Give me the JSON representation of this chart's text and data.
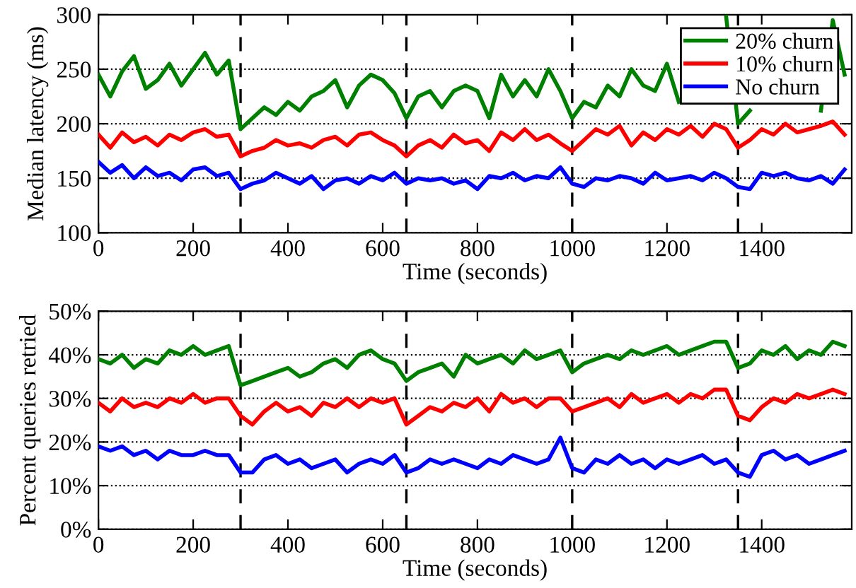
{
  "chart_data": [
    {
      "type": "line",
      "xlabel": "Time (seconds)",
      "ylabel": "Median latency (ms)",
      "xlim": [
        0,
        1590
      ],
      "xticks": [
        0,
        200,
        400,
        600,
        800,
        1000,
        1200,
        1400
      ],
      "ylim": [
        100,
        300
      ],
      "yticks": [
        100,
        150,
        200,
        250,
        300
      ],
      "grid": "y",
      "legend": "top right",
      "line_style": "solid",
      "x": [
        0,
        25,
        50,
        75,
        100,
        125,
        150,
        175,
        200,
        225,
        250,
        275,
        300,
        325,
        350,
        375,
        400,
        425,
        450,
        475,
        500,
        525,
        550,
        575,
        600,
        625,
        650,
        675,
        700,
        725,
        750,
        775,
        800,
        825,
        850,
        875,
        900,
        925,
        950,
        975,
        1000,
        1025,
        1050,
        1075,
        1100,
        1125,
        1150,
        1175,
        1200,
        1225,
        1250,
        1275,
        1300,
        1325,
        1350,
        1375,
        1400,
        1425,
        1450,
        1475,
        1500,
        1525,
        1550,
        1575
      ],
      "ref_lines": [
        {
          "axis": "x",
          "value": 300,
          "color": "#000000",
          "line_style": "dashed"
        },
        {
          "axis": "x",
          "value": 650,
          "color": "#000000",
          "line_style": "dashed"
        },
        {
          "axis": "x",
          "value": 1000,
          "color": "#000000",
          "line_style": "dashed"
        },
        {
          "axis": "x",
          "value": 1350,
          "color": "#000000",
          "line_style": "dashed"
        }
      ],
      "series": [
        {
          "name": "20% churn",
          "color": "#008000",
          "values": [
            245,
            225,
            248,
            262,
            232,
            240,
            255,
            235,
            250,
            265,
            245,
            258,
            195,
            205,
            215,
            208,
            220,
            212,
            225,
            230,
            240,
            215,
            235,
            245,
            240,
            228,
            205,
            225,
            230,
            215,
            230,
            235,
            230,
            205,
            245,
            225,
            240,
            225,
            250,
            230,
            205,
            220,
            215,
            235,
            225,
            250,
            235,
            230,
            255,
            220,
            null,
            null,
            null,
            298,
            200,
            212,
            null,
            null,
            null,
            null,
            null,
            212,
            295,
            245
          ]
        },
        {
          "name": "10% churn",
          "color": "#ff0000",
          "values": [
            190,
            178,
            192,
            183,
            188,
            180,
            190,
            185,
            192,
            195,
            188,
            190,
            170,
            175,
            178,
            185,
            180,
            182,
            178,
            185,
            188,
            180,
            190,
            192,
            185,
            180,
            170,
            180,
            185,
            178,
            190,
            182,
            185,
            175,
            192,
            185,
            195,
            185,
            190,
            182,
            175,
            185,
            195,
            190,
            198,
            180,
            192,
            185,
            195,
            190,
            198,
            188,
            200,
            195,
            178,
            185,
            195,
            190,
            200,
            192,
            195,
            198,
            202,
            190
          ]
        },
        {
          "name": "No churn",
          "color": "#0000ff",
          "values": [
            165,
            155,
            162,
            150,
            160,
            152,
            155,
            148,
            158,
            160,
            152,
            155,
            140,
            145,
            148,
            155,
            150,
            145,
            152,
            140,
            148,
            150,
            145,
            152,
            148,
            155,
            145,
            150,
            148,
            150,
            145,
            148,
            140,
            152,
            150,
            155,
            148,
            152,
            150,
            160,
            145,
            142,
            150,
            148,
            152,
            150,
            145,
            155,
            148,
            150,
            152,
            148,
            155,
            150,
            142,
            140,
            155,
            152,
            155,
            150,
            148,
            152,
            145,
            158
          ]
        }
      ]
    },
    {
      "type": "line",
      "xlabel": "Time (seconds)",
      "ylabel": "Percent queries retried",
      "xlim": [
        0,
        1590
      ],
      "xticks": [
        0,
        200,
        400,
        600,
        800,
        1000,
        1200,
        1400
      ],
      "ylim": [
        0,
        50
      ],
      "yticks": [
        {
          "value": 0,
          "label": "0%"
        },
        {
          "value": 10,
          "label": "10%"
        },
        {
          "value": 20,
          "label": "20%"
        },
        {
          "value": 30,
          "label": "30%"
        },
        {
          "value": 40,
          "label": "40%"
        },
        {
          "value": 50,
          "label": "50%"
        }
      ],
      "grid": "y",
      "line_style": "solid",
      "x": [
        0,
        25,
        50,
        75,
        100,
        125,
        150,
        175,
        200,
        225,
        250,
        275,
        300,
        325,
        350,
        375,
        400,
        425,
        450,
        475,
        500,
        525,
        550,
        575,
        600,
        625,
        650,
        675,
        700,
        725,
        750,
        775,
        800,
        825,
        850,
        875,
        900,
        925,
        950,
        975,
        1000,
        1025,
        1050,
        1075,
        1100,
        1125,
        1150,
        1175,
        1200,
        1225,
        1250,
        1275,
        1300,
        1325,
        1350,
        1375,
        1400,
        1425,
        1450,
        1475,
        1500,
        1525,
        1550,
        1575
      ],
      "ref_lines": [
        {
          "axis": "x",
          "value": 300,
          "color": "#000000",
          "line_style": "dashed"
        },
        {
          "axis": "x",
          "value": 650,
          "color": "#000000",
          "line_style": "dashed"
        },
        {
          "axis": "x",
          "value": 1000,
          "color": "#000000",
          "line_style": "dashed"
        },
        {
          "axis": "x",
          "value": 1350,
          "color": "#000000",
          "line_style": "dashed"
        }
      ],
      "series": [
        {
          "color": "#008000",
          "values": [
            39,
            38,
            40,
            37,
            39,
            38,
            41,
            40,
            42,
            40,
            41,
            42,
            33,
            34,
            35,
            36,
            37,
            35,
            36,
            38,
            39,
            37,
            40,
            41,
            39,
            38,
            34,
            36,
            37,
            38,
            35,
            40,
            38,
            39,
            40,
            38,
            41,
            39,
            40,
            41,
            36,
            38,
            39,
            40,
            39,
            41,
            40,
            41,
            42,
            40,
            41,
            42,
            43,
            43,
            37,
            38,
            41,
            40,
            42,
            39,
            41,
            40,
            43,
            42
          ]
        },
        {
          "color": "#ff0000",
          "values": [
            29,
            27,
            30,
            28,
            29,
            28,
            30,
            29,
            31,
            29,
            30,
            30,
            26,
            24,
            27,
            29,
            27,
            28,
            26,
            29,
            28,
            30,
            28,
            30,
            29,
            30,
            24,
            26,
            28,
            27,
            29,
            28,
            30,
            27,
            31,
            29,
            30,
            28,
            30,
            30,
            27,
            28,
            29,
            30,
            28,
            31,
            29,
            30,
            31,
            29,
            31,
            30,
            32,
            32,
            26,
            25,
            28,
            30,
            29,
            31,
            30,
            31,
            32,
            31
          ]
        },
        {
          "color": "#0000ff",
          "values": [
            19,
            18,
            19,
            17,
            18,
            16,
            18,
            17,
            17,
            18,
            17,
            17,
            13,
            13,
            16,
            17,
            15,
            16,
            14,
            15,
            16,
            13,
            15,
            16,
            15,
            17,
            13,
            14,
            16,
            15,
            16,
            15,
            14,
            16,
            15,
            17,
            16,
            15,
            16,
            21,
            14,
            13,
            16,
            15,
            17,
            15,
            16,
            14,
            16,
            15,
            16,
            17,
            15,
            16,
            13,
            12,
            17,
            18,
            16,
            17,
            15,
            16,
            17,
            18
          ]
        }
      ]
    }
  ]
}
